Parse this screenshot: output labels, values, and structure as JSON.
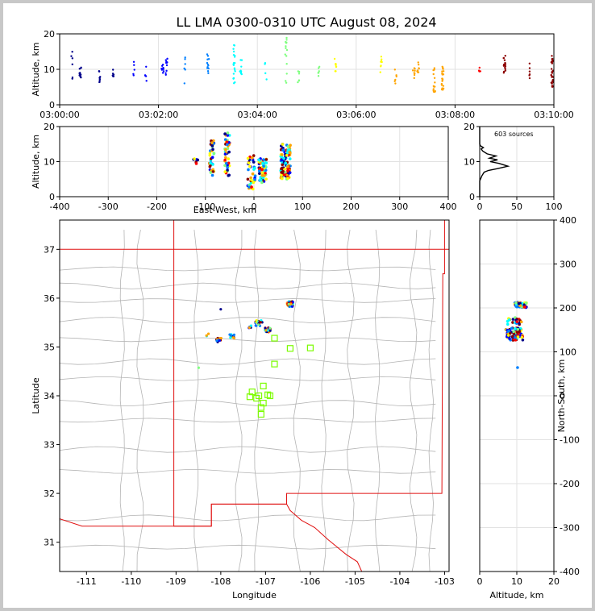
{
  "title": "LL LMA 0300-0310 UTC August 08, 2024",
  "colors": {
    "state_border": "#e01010",
    "county_line": "#b4b4b4",
    "station_marker": "#7cfc00",
    "grid": "#e2e2e2",
    "colormap": [
      "#00008b",
      "#0000ff",
      "#0080ff",
      "#00ffff",
      "#7fff7f",
      "#ffff00",
      "#ffa500",
      "#ff0000",
      "#8b0000"
    ]
  },
  "chart_data": [
    {
      "id": "altitude_time",
      "type": "scatter",
      "ylabel": "Altitude, km",
      "xlim": [
        "03:00:00",
        "03:10:00"
      ],
      "ylim": [
        0,
        20
      ],
      "xticks": [
        "03:00:00",
        "03:02:00",
        "03:04:00",
        "03:06:00",
        "03:08:00",
        "03:10:00"
      ],
      "yticks": [
        0,
        10,
        20
      ],
      "grid": true,
      "clusters": [
        {
          "time": "03:00:15",
          "alt_range": [
            4,
            15
          ],
          "n": 6
        },
        {
          "time": "03:00:25",
          "alt_range": [
            7,
            11
          ],
          "n": 12
        },
        {
          "time": "03:00:48",
          "alt_range": [
            6,
            10
          ],
          "n": 8
        },
        {
          "time": "03:01:05",
          "alt_range": [
            8,
            10
          ],
          "n": 6
        },
        {
          "time": "03:01:30",
          "alt_range": [
            7,
            13
          ],
          "n": 5
        },
        {
          "time": "03:01:45",
          "alt_range": [
            5,
            11
          ],
          "n": 5
        },
        {
          "time": "03:02:05",
          "alt_range": [
            7,
            12
          ],
          "n": 8
        },
        {
          "time": "03:02:10",
          "alt_range": [
            7,
            13
          ],
          "n": 10
        },
        {
          "time": "03:02:32",
          "alt_range": [
            6,
            14
          ],
          "n": 6
        },
        {
          "time": "03:03:00",
          "alt_range": [
            8,
            15
          ],
          "n": 12
        },
        {
          "time": "03:03:32",
          "alt_range": [
            6,
            17
          ],
          "n": 20
        },
        {
          "time": "03:03:40",
          "alt_range": [
            7,
            13
          ],
          "n": 10
        },
        {
          "time": "03:04:10",
          "alt_range": [
            7,
            12
          ],
          "n": 4
        },
        {
          "time": "03:04:35",
          "alt_range": [
            5,
            19
          ],
          "n": 14
        },
        {
          "time": "03:04:50",
          "alt_range": [
            6,
            10
          ],
          "n": 6
        },
        {
          "time": "03:05:15",
          "alt_range": [
            8,
            11
          ],
          "n": 6
        },
        {
          "time": "03:05:35",
          "alt_range": [
            9,
            13
          ],
          "n": 8
        },
        {
          "time": "03:06:30",
          "alt_range": [
            8,
            14
          ],
          "n": 8
        },
        {
          "time": "03:06:48",
          "alt_range": [
            6,
            10
          ],
          "n": 6
        },
        {
          "time": "03:07:10",
          "alt_range": [
            7,
            11
          ],
          "n": 8
        },
        {
          "time": "03:07:15",
          "alt_range": [
            9,
            12
          ],
          "n": 8
        },
        {
          "time": "03:07:35",
          "alt_range": [
            3,
            11
          ],
          "n": 14
        },
        {
          "time": "03:07:45",
          "alt_range": [
            4,
            11
          ],
          "n": 22
        },
        {
          "time": "03:08:30",
          "alt_range": [
            8,
            11
          ],
          "n": 4
        },
        {
          "time": "03:09:00",
          "alt_range": [
            9,
            14
          ],
          "n": 16
        },
        {
          "time": "03:09:30",
          "alt_range": [
            7,
            12
          ],
          "n": 6
        },
        {
          "time": "03:09:58",
          "alt_range": [
            5,
            14
          ],
          "n": 30
        }
      ]
    },
    {
      "id": "altitude_eastwest",
      "type": "scatter",
      "xlabel": "East-West, km",
      "ylabel": "Altitude, km",
      "xlim": [
        -400,
        400
      ],
      "ylim": [
        0,
        20
      ],
      "xticks": [
        -400,
        -300,
        -200,
        -100,
        0,
        100,
        200,
        300,
        400
      ],
      "yticks": [
        0,
        10,
        20
      ],
      "grid": true,
      "clusters": [
        {
          "x": -120,
          "x_spread": 6,
          "alt_range": [
            9,
            11
          ],
          "n": 6
        },
        {
          "x": -88,
          "x_spread": 6,
          "alt_range": [
            6,
            16
          ],
          "n": 35
        },
        {
          "x": -55,
          "x_spread": 5,
          "alt_range": [
            6,
            19
          ],
          "n": 45
        },
        {
          "x": -5,
          "x_spread": 8,
          "alt_range": [
            2,
            12
          ],
          "n": 40
        },
        {
          "x": 18,
          "x_spread": 8,
          "alt_range": [
            4,
            11
          ],
          "n": 60
        },
        {
          "x": 65,
          "x_spread": 10,
          "alt_range": [
            5,
            15
          ],
          "n": 110
        }
      ]
    },
    {
      "id": "altitude_histogram",
      "type": "line",
      "annotation": "603 sources",
      "xlim": [
        0,
        100
      ],
      "ylim": [
        0,
        20
      ],
      "xticks": [
        0,
        50,
        100
      ],
      "yticks": [
        0,
        10,
        20
      ],
      "grid": true,
      "profile": [
        [
          0,
          0.0
        ],
        [
          0,
          4.5
        ],
        [
          1,
          5.0
        ],
        [
          3,
          6.0
        ],
        [
          6,
          7.0
        ],
        [
          12,
          7.5
        ],
        [
          24,
          8.0
        ],
        [
          38,
          8.7
        ],
        [
          26,
          9.5
        ],
        [
          14,
          10.0
        ],
        [
          24,
          10.5
        ],
        [
          13,
          11.0
        ],
        [
          22,
          11.6
        ],
        [
          10,
          12.2
        ],
        [
          4,
          13.0
        ],
        [
          2,
          13.6
        ],
        [
          5,
          14.0
        ],
        [
          1,
          14.5
        ],
        [
          0,
          15.0
        ],
        [
          0,
          20.0
        ]
      ]
    },
    {
      "id": "plan_view",
      "type": "scatter",
      "xlabel": "Longitude",
      "ylabel": "Latitude",
      "xlim": [
        -111.6,
        -102.9
      ],
      "ylim": [
        30.4,
        37.6
      ],
      "xticks": [
        -111,
        -110,
        -109,
        -108,
        -107,
        -106,
        -105,
        -104,
        -103
      ],
      "yticks": [
        31,
        32,
        33,
        34,
        35,
        36,
        37
      ],
      "clusters": [
        {
          "lon": -108.0,
          "lat": 35.78,
          "spread": 0.02,
          "n": 1
        },
        {
          "lon": -108.3,
          "lat": 35.25,
          "spread": 0.04,
          "n": 3
        },
        {
          "lon": -108.05,
          "lat": 35.15,
          "spread": 0.06,
          "n": 14
        },
        {
          "lon": -107.75,
          "lat": 35.22,
          "spread": 0.05,
          "n": 18
        },
        {
          "lon": -107.35,
          "lat": 35.42,
          "spread": 0.04,
          "n": 6
        },
        {
          "lon": -107.15,
          "lat": 35.48,
          "spread": 0.08,
          "n": 18
        },
        {
          "lon": -106.95,
          "lat": 35.35,
          "spread": 0.06,
          "n": 25
        },
        {
          "lon": -106.45,
          "lat": 35.88,
          "spread": 0.07,
          "n": 50
        },
        {
          "lon": -108.5,
          "lat": 34.57,
          "spread": 0.01,
          "n": 1
        }
      ],
      "stations": [
        [
          -106.8,
          35.18
        ],
        [
          -106.45,
          34.97
        ],
        [
          -106.0,
          34.98
        ],
        [
          -106.8,
          34.65
        ],
        [
          -107.3,
          34.08
        ],
        [
          -107.15,
          34.0
        ],
        [
          -107.05,
          34.2
        ],
        [
          -106.95,
          34.02
        ],
        [
          -107.05,
          33.85
        ],
        [
          -107.2,
          33.95
        ],
        [
          -107.35,
          33.98
        ],
        [
          -107.1,
          33.76
        ],
        [
          -107.1,
          33.62
        ],
        [
          -106.9,
          34.0
        ]
      ],
      "nm_border": [
        [
          -109.05,
          37.6
        ],
        [
          -109.05,
          31.33
        ],
        [
          -108.21,
          31.33
        ],
        [
          -108.21,
          31.78
        ],
        [
          -106.53,
          31.78
        ],
        [
          -106.53,
          32.0
        ],
        [
          -103.06,
          32.0
        ],
        [
          -103.04,
          36.5
        ],
        [
          -103.0,
          36.5
        ],
        [
          -103.0,
          37.6
        ]
      ],
      "state_lines": [
        [
          [
            -111.6,
            37.0
          ],
          [
            -102.9,
            37.0
          ]
        ]
      ],
      "tx_mexico_border": [
        [
          -111.6,
          31.48
        ],
        [
          -111.1,
          31.33
        ],
        [
          -108.21,
          31.33
        ],
        [
          -108.21,
          31.78
        ],
        [
          -106.53,
          31.78
        ],
        [
          -106.45,
          31.65
        ],
        [
          -106.2,
          31.45
        ],
        [
          -105.9,
          31.3
        ],
        [
          -105.6,
          31.05
        ],
        [
          -105.2,
          30.75
        ],
        [
          -104.95,
          30.6
        ],
        [
          -104.85,
          30.4
        ]
      ]
    },
    {
      "id": "north_south",
      "type": "scatter",
      "xlabel": "Altitude, km",
      "ylabel": "North-South, km",
      "xlim": [
        0,
        20
      ],
      "ylim": [
        -400,
        400
      ],
      "xticks": [
        0,
        10,
        20
      ],
      "yticks": [
        -400,
        -300,
        -200,
        -100,
        0,
        100,
        200,
        300,
        400
      ],
      "grid": true,
      "clusters": [
        {
          "alt": 11.0,
          "alt_spread": 1.6,
          "ns": 207,
          "ns_spread": 6,
          "n": 70
        },
        {
          "alt": 9.5,
          "alt_spread": 2.0,
          "ns": 170,
          "ns_spread": 8,
          "n": 20
        },
        {
          "alt": 9.0,
          "alt_spread": 2.2,
          "ns": 147,
          "ns_spread": 8,
          "n": 45
        },
        {
          "alt": 9.5,
          "alt_spread": 2.2,
          "ns": 132,
          "ns_spread": 6,
          "n": 30
        },
        {
          "alt": 10.5,
          "alt_spread": 0.3,
          "ns": 65,
          "ns_spread": 2,
          "n": 1
        }
      ]
    }
  ]
}
